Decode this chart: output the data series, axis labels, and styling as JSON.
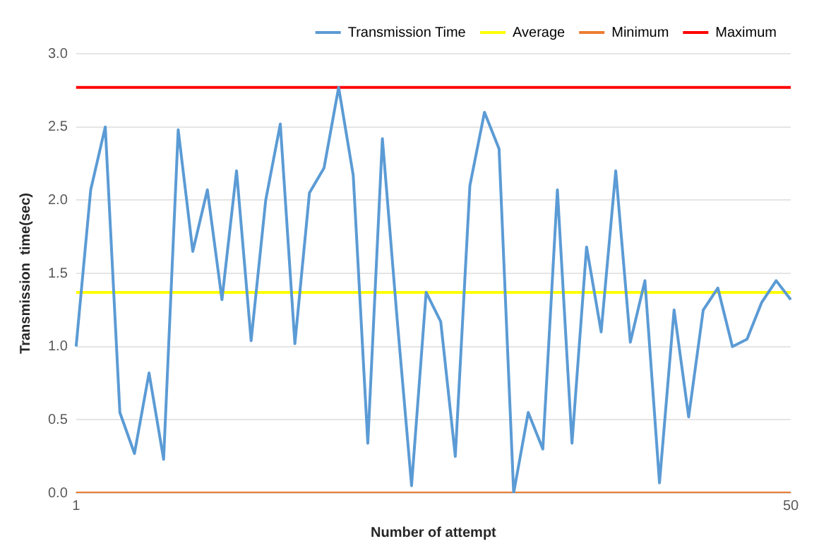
{
  "chart_data": {
    "type": "line",
    "xlabel": "Number of attempt",
    "ylabel": "Transmission  time(sec)",
    "categories": [
      "1",
      null,
      null,
      null,
      null,
      null,
      null,
      null,
      null,
      null,
      null,
      null,
      null,
      null,
      null,
      null,
      null,
      null,
      null,
      null,
      null,
      null,
      null,
      null,
      null,
      null,
      null,
      null,
      null,
      null,
      null,
      null,
      null,
      null,
      null,
      null,
      null,
      null,
      null,
      null,
      null,
      null,
      null,
      null,
      null,
      null,
      null,
      null,
      null,
      "50"
    ],
    "series": [
      {
        "name": "Transmission Time",
        "color": "#5b9bd5",
        "values": [
          1.0,
          2.07,
          2.5,
          0.55,
          0.27,
          0.82,
          0.23,
          2.48,
          1.65,
          2.07,
          1.32,
          2.2,
          1.04,
          2.0,
          2.52,
          1.02,
          2.05,
          2.22,
          2.77,
          2.17,
          0.34,
          2.42,
          1.2,
          0.05,
          1.37,
          1.17,
          0.25,
          2.1,
          2.6,
          2.35,
          0.0,
          0.55,
          0.3,
          2.07,
          0.34,
          1.68,
          1.1,
          2.2,
          1.03,
          1.45,
          0.07,
          1.25,
          0.52,
          1.25,
          1.4,
          1.0,
          1.05,
          1.3,
          1.45,
          1.32
        ]
      },
      {
        "name": "Average",
        "color": "#ffff00",
        "values": [
          1.37,
          1.37,
          1.37,
          1.37,
          1.37,
          1.37,
          1.37,
          1.37,
          1.37,
          1.37,
          1.37,
          1.37,
          1.37,
          1.37,
          1.37,
          1.37,
          1.37,
          1.37,
          1.37,
          1.37,
          1.37,
          1.37,
          1.37,
          1.37,
          1.37,
          1.37,
          1.37,
          1.37,
          1.37,
          1.37,
          1.37,
          1.37,
          1.37,
          1.37,
          1.37,
          1.37,
          1.37,
          1.37,
          1.37,
          1.37,
          1.37,
          1.37,
          1.37,
          1.37,
          1.37,
          1.37,
          1.37,
          1.37,
          1.37,
          1.37
        ]
      },
      {
        "name": "Minimum",
        "color": "#ed7d31",
        "values": [
          0,
          0,
          0,
          0,
          0,
          0,
          0,
          0,
          0,
          0,
          0,
          0,
          0,
          0,
          0,
          0,
          0,
          0,
          0,
          0,
          0,
          0,
          0,
          0,
          0,
          0,
          0,
          0,
          0,
          0,
          0,
          0,
          0,
          0,
          0,
          0,
          0,
          0,
          0,
          0,
          0,
          0,
          0,
          0,
          0,
          0,
          0,
          0,
          0,
          0
        ]
      },
      {
        "name": "Maximum",
        "color": "#ff0000",
        "values": [
          2.77,
          2.77,
          2.77,
          2.77,
          2.77,
          2.77,
          2.77,
          2.77,
          2.77,
          2.77,
          2.77,
          2.77,
          2.77,
          2.77,
          2.77,
          2.77,
          2.77,
          2.77,
          2.77,
          2.77,
          2.77,
          2.77,
          2.77,
          2.77,
          2.77,
          2.77,
          2.77,
          2.77,
          2.77,
          2.77,
          2.77,
          2.77,
          2.77,
          2.77,
          2.77,
          2.77,
          2.77,
          2.77,
          2.77,
          2.77,
          2.77,
          2.77,
          2.77,
          2.77,
          2.77,
          2.77,
          2.77,
          2.77,
          2.77,
          2.77
        ]
      }
    ],
    "ylim": [
      0,
      3
    ],
    "yticks": [
      {
        "value": 0,
        "label": "0.0"
      },
      {
        "value": 0.5,
        "label": "0.5"
      },
      {
        "value": 1,
        "label": "1.0"
      },
      {
        "value": 1.5,
        "label": "1.5"
      },
      {
        "value": 2,
        "label": "2.0"
      },
      {
        "value": 2.5,
        "label": "2.5"
      },
      {
        "value": 3,
        "label": "3.0"
      }
    ],
    "grid": "y",
    "legend": "top right",
    "marker": "none",
    "line_style": "solid"
  }
}
